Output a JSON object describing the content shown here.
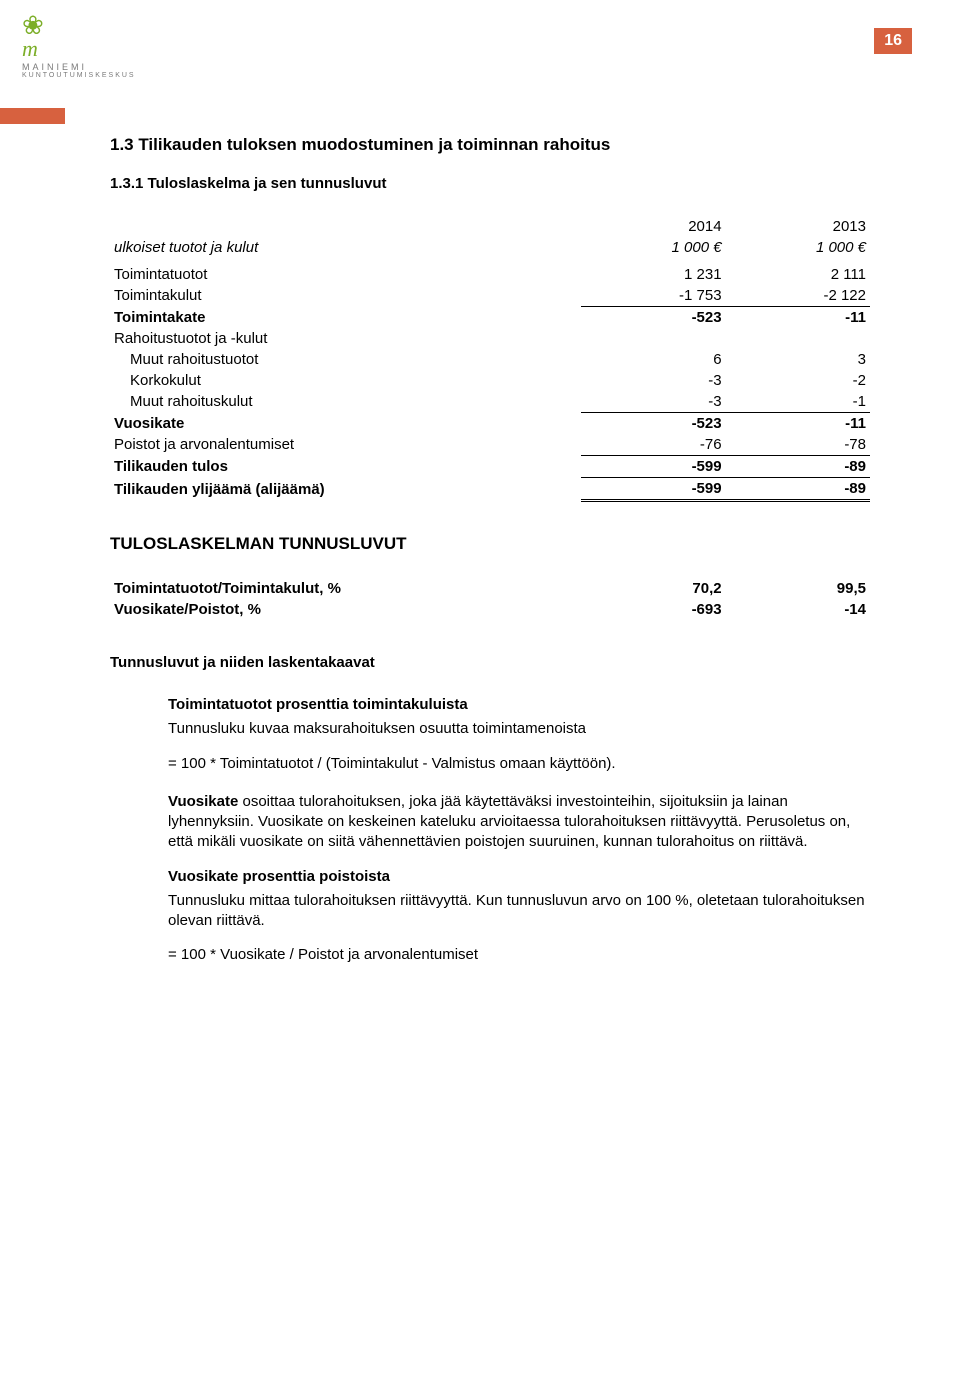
{
  "page_number": "16",
  "logo": {
    "name": "MAINIEMI",
    "subtitle": "KUNTOUTUMISKESKUS"
  },
  "heading1": "1.3   Tilikauden tuloksen muodostuminen ja toiminnan rahoitus",
  "heading2": "1.3.1 Tuloslaskelma ja sen tunnusluvut",
  "table1": {
    "year1": "2014",
    "year2": "2013",
    "sub_label": "ulkoiset tuotot ja kulut",
    "sub_v1": "1 000 €",
    "sub_v2": "1 000 €",
    "rows": [
      {
        "label": "Toimintatuotot",
        "v1": "1 231",
        "v2": "2 111",
        "under": false,
        "bold": false
      },
      {
        "label": "Toimintakulut",
        "v1": "-1 753",
        "v2": "-2 122",
        "under": true,
        "bold": false
      },
      {
        "label": "Toimintakate",
        "v1": "-523",
        "v2": "-11",
        "under": false,
        "bold": true
      },
      {
        "label": "Rahoitustuotot ja -kulut",
        "v1": "",
        "v2": "",
        "under": false,
        "bold": false
      },
      {
        "label": "  Muut rahoitustuotot",
        "v1": "6",
        "v2": "3",
        "under": false,
        "bold": false
      },
      {
        "label": "  Korkokulut",
        "v1": "-3",
        "v2": "-2",
        "under": false,
        "bold": false
      },
      {
        "label": "  Muut rahoituskulut",
        "v1": "-3",
        "v2": "-1",
        "under": true,
        "bold": false
      },
      {
        "label": "Vuosikate",
        "v1": "-523",
        "v2": "-11",
        "under": false,
        "bold": true
      },
      {
        "label": "Poistot ja arvonalentumiset",
        "v1": "-76",
        "v2": "-78",
        "under": true,
        "bold": false
      },
      {
        "label": "Tilikauden tulos",
        "v1": "-599",
        "v2": "-89",
        "under": true,
        "bold": true
      },
      {
        "label": "Tilikauden ylijäämä (alijäämä)",
        "v1": "-599",
        "v2": "-89",
        "under": false,
        "bold": true,
        "dbl": true
      }
    ]
  },
  "heading3": "TULOSLASKELMAN TUNNUSLUVUT",
  "table2": {
    "rows": [
      {
        "label": "Toimintatuotot/Toimintakulut, %",
        "v1": "70,2",
        "v2": "99,5",
        "bold": true
      },
      {
        "label": "Vuosikate/Poistot, %",
        "v1": "-693",
        "v2": "-14",
        "bold": true
      }
    ]
  },
  "heading4": "Tunnusluvut ja niiden laskentakaavat",
  "block1": {
    "title": "Toimintatuotot prosenttia toimintakuluista",
    "line1": "Tunnusluku kuvaa maksurahoituksen osuutta toimintamenoista",
    "line2": "= 100 * Toimintatuotot / (Toimintakulut - Valmistus omaan käyttöön)."
  },
  "block2": {
    "p1_lead": "Vuosikate",
    "p1": " osoittaa tulorahoituksen, joka jää käytettäväksi investointeihin, sijoituksiin ja lainan lyhennyksiin. Vuosikate on keskeinen kateluku arvioitaessa tulorahoituksen riittävyyttä. Perusoletus on, että mikäli vuosikate on siitä vähennettävien poistojen suuruinen, kunnan tulorahoitus on riittävä."
  },
  "block3": {
    "title": "Vuosikate prosenttia poistoista",
    "line1": "Tunnusluku mittaa tulorahoituksen riittävyyttä. Kun tunnusluvun arvo on 100 %, oletetaan tulorahoituksen olevan riittävä.",
    "line2": "= 100 * Vuosikate / Poistot ja arvonalentumiset"
  }
}
